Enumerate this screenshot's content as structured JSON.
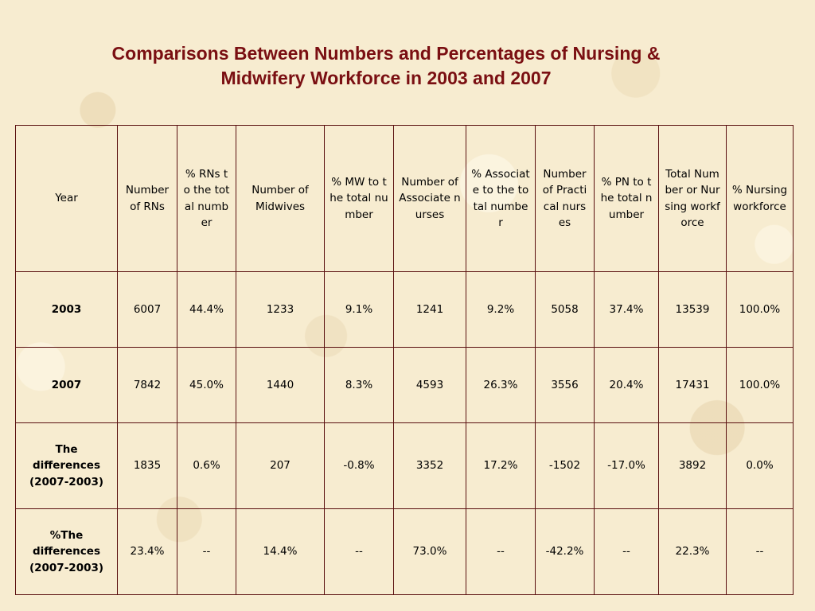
{
  "title": "Comparisons Between Numbers and Percentages of Nursing &\nMidwifery Workforce in 2003 and 2007",
  "table": {
    "headers": [
      "Year",
      "Number of RNs",
      "% RNs to the total number",
      "Number of Midwives",
      "% MW to the total number",
      "Number of Associate nurses",
      "% Associate to the total number",
      "Number of Practical nurses",
      "% PN to the total number",
      "Total Number or Nursing workforce",
      "% Nursing workforce"
    ],
    "rows": [
      [
        "2003",
        "6007",
        "44.4%",
        "1233",
        "9.1%",
        "1241",
        "9.2%",
        "5058",
        "37.4%",
        "13539",
        "100.0%"
      ],
      [
        "2007",
        "7842",
        "45.0%",
        "1440",
        "8.3%",
        "4593",
        "26.3%",
        "3556",
        "20.4%",
        "17431",
        "100.0%"
      ],
      [
        "The differences (2007-2003)",
        "1835",
        "0.6%",
        "207",
        "-0.8%",
        "3352",
        "17.2%",
        "-1502",
        "-17.0%",
        "3892",
        "0.0%"
      ],
      [
        "%The differences (2007-2003)",
        "23.4%",
        "--",
        "14.4%",
        "--",
        "73.0%",
        "--",
        "-42.2%",
        "--",
        "22.3%",
        "--"
      ]
    ]
  },
  "colors": {
    "title": "#7a0f12",
    "border": "#5a1010",
    "background": "#f7ecd0"
  }
}
